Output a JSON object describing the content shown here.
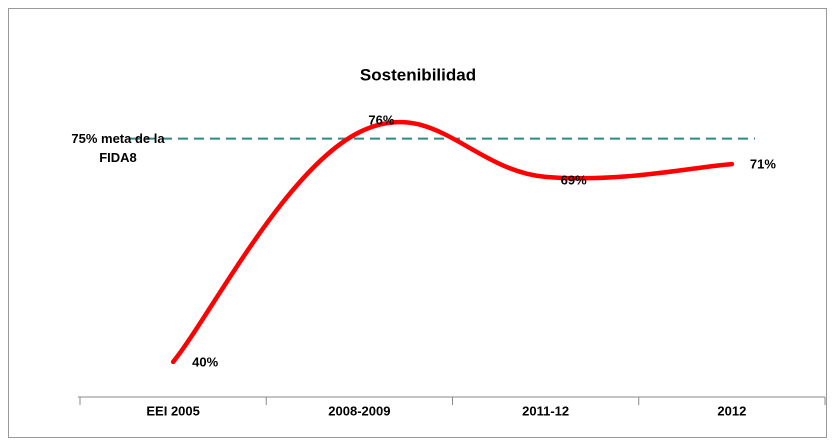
{
  "chart_data": {
    "type": "line",
    "title": "Sostenibilidad",
    "categories": [
      "EEI 2005",
      "2008-2009",
      "2011-12",
      "2012"
    ],
    "series": [
      {
        "color": "#ff0000",
        "values": [
          40,
          76,
          69,
          71
        ],
        "value_labels": [
          "40%",
          "76%",
          "69%",
          "71%"
        ]
      }
    ],
    "ylim": [
      34.5,
      87
    ],
    "smooth": true,
    "reference_line": {
      "value": 75,
      "color": "#2e8b84",
      "label": [
        "75% meta de la",
        "FIDA8"
      ]
    }
  }
}
